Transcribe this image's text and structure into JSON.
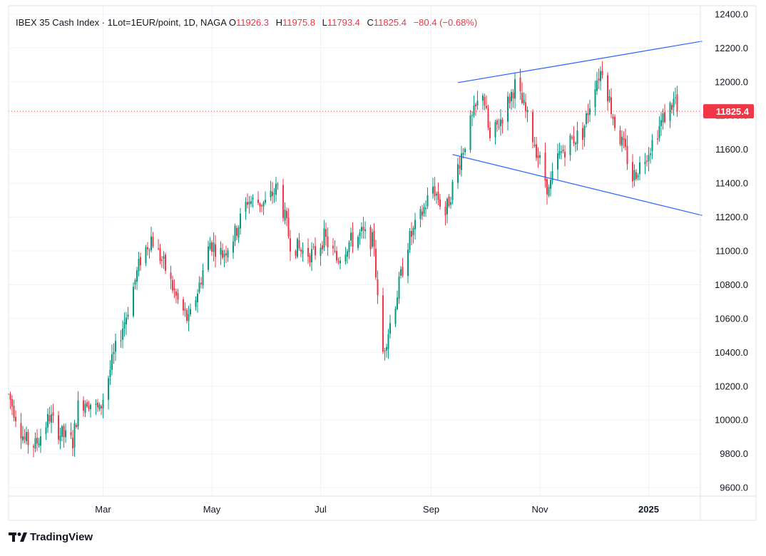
{
  "legend": {
    "title": "IBEX 35 Cash Index · 1Lot=1EUR/point, 1D, NAGA",
    "o_label": "O",
    "o_value": "11926.3",
    "h_label": "H",
    "h_value": "11975.8",
    "l_label": "L",
    "l_value": "11793.4",
    "c_label": "C",
    "c_value": "11825.4",
    "change": "−80.4 (−0.68%)"
  },
  "branding": {
    "name": "TradingView"
  },
  "colors": {
    "up": "#089981",
    "down": "#f23645",
    "trendline": "#2962ff",
    "grid": "#f0f3fa",
    "axis_text": "#131722",
    "price_tag_bg": "#f23645"
  },
  "chart_data": {
    "type": "candlestick",
    "title": "IBEX 35 Cash Index · 1Lot=1EUR/point, 1D, NAGA",
    "ylim": [
      9550,
      12450
    ],
    "y_ticks": [
      9600,
      9800,
      10000,
      10200,
      10400,
      10600,
      10800,
      11000,
      11200,
      11400,
      11600,
      11800,
      12000,
      12200,
      12400
    ],
    "y_tick_labels": [
      "9600.0",
      "9800.0",
      "10000.0",
      "10200.0",
      "10400.0",
      "10600.0",
      "10800.0",
      "11000.0",
      "11200.0",
      "11400.0",
      "11600.0",
      "11800.0",
      "12000.0",
      "12200.0",
      "12400.0"
    ],
    "x_range": [
      "2024-01-08",
      "2025-01-30"
    ],
    "x_ticks": [
      {
        "date": "2024-03-01",
        "label": "Mar"
      },
      {
        "date": "2024-05-01",
        "label": "May"
      },
      {
        "date": "2024-07-01",
        "label": "Jul"
      },
      {
        "date": "2024-09-01",
        "label": "Sep"
      },
      {
        "date": "2024-11-01",
        "label": "Nov"
      },
      {
        "date": "2025-01-01",
        "label": "2025"
      }
    ],
    "last_price": 11825.4,
    "last_price_label": "11825.4",
    "grid": true,
    "waypoints": [
      [
        "2024-01-08",
        10150
      ],
      [
        "2024-01-17",
        9880
      ],
      [
        "2024-01-23",
        9850
      ],
      [
        "2024-01-31",
        10020
      ],
      [
        "2024-02-06",
        9920
      ],
      [
        "2024-02-13",
        9870
      ],
      [
        "2024-02-16",
        10080
      ],
      [
        "2024-02-21",
        10120
      ],
      [
        "2024-02-28",
        10050
      ],
      [
        "2024-03-07",
        10380
      ],
      [
        "2024-03-14",
        10620
      ],
      [
        "2024-03-22",
        10950
      ],
      [
        "2024-03-28",
        11080
      ],
      [
        "2024-04-04",
        10920
      ],
      [
        "2024-04-12",
        10700
      ],
      [
        "2024-04-18",
        10580
      ],
      [
        "2024-04-24",
        10800
      ],
      [
        "2024-04-30",
        11050
      ],
      [
        "2024-05-07",
        10980
      ],
      [
        "2024-05-14",
        11100
      ],
      [
        "2024-05-21",
        11300
      ],
      [
        "2024-05-31",
        11280
      ],
      [
        "2024-06-07",
        11380
      ],
      [
        "2024-06-14",
        11050
      ],
      [
        "2024-06-20",
        11000
      ],
      [
        "2024-06-27",
        10980
      ],
      [
        "2024-07-03",
        11080
      ],
      [
        "2024-07-10",
        10950
      ],
      [
        "2024-07-17",
        11050
      ],
      [
        "2024-07-24",
        11100
      ],
      [
        "2024-07-31",
        11050
      ],
      [
        "2024-08-02",
        10700
      ],
      [
        "2024-08-05",
        10400
      ],
      [
        "2024-08-12",
        10700
      ],
      [
        "2024-08-19",
        11050
      ],
      [
        "2024-08-26",
        11200
      ],
      [
        "2024-09-02",
        11380
      ],
      [
        "2024-09-09",
        11220
      ],
      [
        "2024-09-16",
        11500
      ],
      [
        "2024-09-23",
        11750
      ],
      [
        "2024-09-30",
        11950
      ],
      [
        "2024-10-04",
        11650
      ],
      [
        "2024-10-11",
        11800
      ],
      [
        "2024-10-18",
        11980
      ],
      [
        "2024-10-24",
        11820
      ],
      [
        "2024-10-30",
        11600
      ],
      [
        "2024-11-06",
        11350
      ],
      [
        "2024-11-11",
        11550
      ],
      [
        "2024-11-18",
        11650
      ],
      [
        "2024-11-25",
        11700
      ],
      [
        "2024-12-02",
        12000
      ],
      [
        "2024-12-06",
        12080
      ],
      [
        "2024-12-13",
        11750
      ],
      [
        "2024-12-19",
        11580
      ],
      [
        "2024-12-23",
        11430
      ],
      [
        "2025-01-02",
        11620
      ],
      [
        "2025-01-09",
        11780
      ],
      [
        "2025-01-16",
        11900
      ],
      [
        "2025-01-17",
        11825
      ]
    ],
    "trendlines": [
      {
        "name": "upper",
        "from": [
          "2024-09-16",
          11995
        ],
        "to": [
          "2025-01-31",
          12240
        ]
      },
      {
        "name": "lower",
        "from": [
          "2024-09-13",
          11570
        ],
        "to": [
          "2025-01-31",
          11210
        ]
      }
    ]
  }
}
